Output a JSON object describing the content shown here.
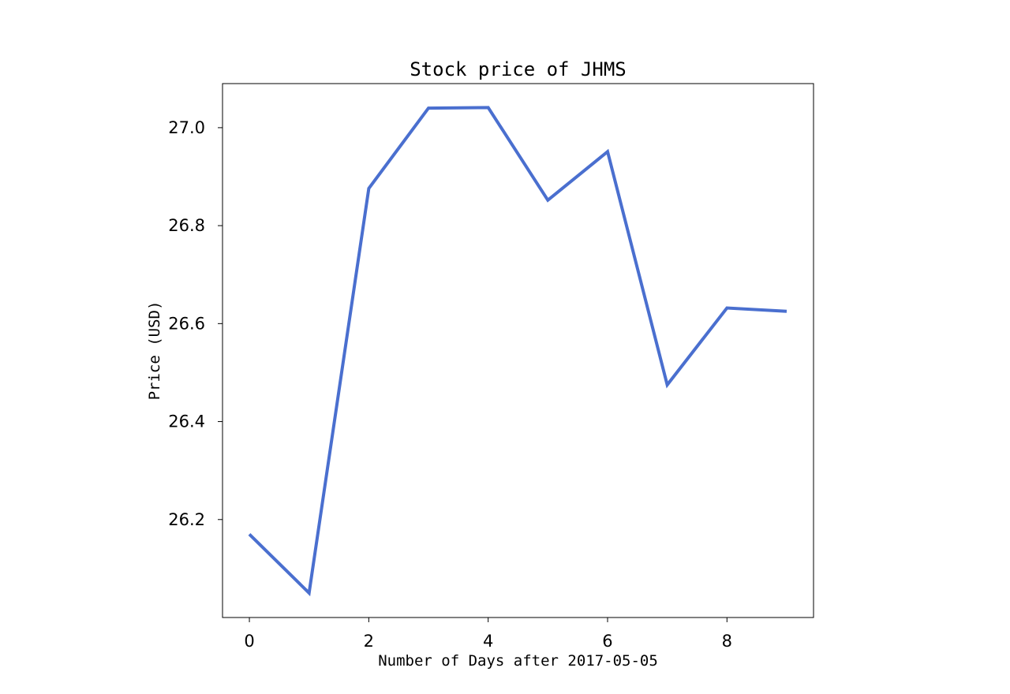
{
  "chart_data": {
    "type": "line",
    "title": "Stock price of JHMS",
    "xlabel": "Number of Days after 2017-05-05",
    "ylabel": "Price (USD)",
    "x": [
      0,
      1,
      2,
      3,
      4,
      5,
      6,
      7,
      8,
      9
    ],
    "series": [
      {
        "values": [
          26.17,
          26.05,
          26.876,
          27.04,
          27.041,
          26.852,
          26.951,
          26.475,
          26.632,
          26.625
        ],
        "color": "#4a6fcf"
      }
    ],
    "xlim": [
      -0.45,
      9.45
    ],
    "ylim": [
      26.0,
      27.09
    ],
    "xticks": [
      0,
      2,
      4,
      6,
      8
    ],
    "xtick_labels": [
      "0",
      "2",
      "4",
      "6",
      "8"
    ],
    "yticks": [
      26.2,
      26.4,
      26.6,
      26.8,
      27.0
    ],
    "ytick_labels": [
      "26.2",
      "26.4",
      "26.6",
      "26.8",
      "27.0"
    ],
    "grid": false,
    "legend": "none"
  }
}
